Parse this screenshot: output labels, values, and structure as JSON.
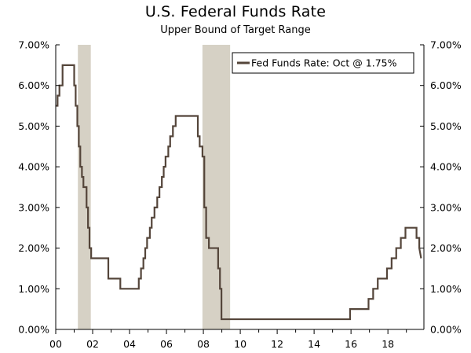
{
  "chart_data": {
    "type": "line",
    "title": "U.S. Federal Funds Rate",
    "subtitle": "Upper Bound of Target Range",
    "xlabel": "",
    "ylabel": "",
    "xlim": [
      2000.0,
      2019.95
    ],
    "ylim": [
      0,
      7
    ],
    "x_ticks": [
      {
        "value": 2000,
        "label": "00"
      },
      {
        "value": 2002,
        "label": "02"
      },
      {
        "value": 2004,
        "label": "04"
      },
      {
        "value": 2006,
        "label": "06"
      },
      {
        "value": 2008,
        "label": "08"
      },
      {
        "value": 2010,
        "label": "10"
      },
      {
        "value": 2012,
        "label": "12"
      },
      {
        "value": 2014,
        "label": "14"
      },
      {
        "value": 2016,
        "label": "16"
      },
      {
        "value": 2018,
        "label": "18"
      }
    ],
    "y_ticks": [
      {
        "value": 0,
        "label": "0.00%"
      },
      {
        "value": 1,
        "label": "1.00%"
      },
      {
        "value": 2,
        "label": "2.00%"
      },
      {
        "value": 3,
        "label": "3.00%"
      },
      {
        "value": 4,
        "label": "4.00%"
      },
      {
        "value": 5,
        "label": "5.00%"
      },
      {
        "value": 6,
        "label": "6.00%"
      },
      {
        "value": 7,
        "label": "7.00%"
      }
    ],
    "recessions": [
      {
        "start": 2001.2,
        "end": 2001.9
      },
      {
        "start": 2007.95,
        "end": 2009.45
      }
    ],
    "legend": {
      "position": "top-right",
      "label": "Fed Funds Rate: Oct @ 1.75%"
    },
    "colors": {
      "line": "#54453a",
      "recession": "#d6d1c5",
      "axis": "#000000"
    },
    "series": [
      {
        "name": "Fed Funds Rate",
        "x": [
          2000.0,
          2000.1,
          2000.1,
          2000.2,
          2000.2,
          2000.37,
          2000.37,
          2001.0,
          2001.0,
          2001.08,
          2001.08,
          2001.17,
          2001.17,
          2001.25,
          2001.25,
          2001.33,
          2001.33,
          2001.42,
          2001.42,
          2001.5,
          2001.5,
          2001.67,
          2001.67,
          2001.75,
          2001.75,
          2001.83,
          2001.83,
          2001.92,
          2001.92,
          2002.85,
          2002.85,
          2003.5,
          2003.5,
          2004.5,
          2004.5,
          2004.62,
          2004.62,
          2004.75,
          2004.75,
          2004.85,
          2004.85,
          2004.95,
          2004.95,
          2005.1,
          2005.1,
          2005.2,
          2005.2,
          2005.35,
          2005.35,
          2005.5,
          2005.5,
          2005.62,
          2005.62,
          2005.75,
          2005.75,
          2005.85,
          2005.85,
          2005.95,
          2005.95,
          2006.1,
          2006.1,
          2006.2,
          2006.2,
          2006.35,
          2006.35,
          2006.5,
          2006.5,
          2007.7,
          2007.7,
          2007.8,
          2007.8,
          2007.95,
          2007.95,
          2008.05,
          2008.05,
          2008.15,
          2008.15,
          2008.3,
          2008.3,
          2008.8,
          2008.8,
          2008.9,
          2008.9,
          2008.98,
          2008.98,
          2015.95,
          2015.95,
          2016.95,
          2016.95,
          2017.2,
          2017.2,
          2017.45,
          2017.45,
          2017.95,
          2017.95,
          2018.2,
          2018.2,
          2018.45,
          2018.45,
          2018.7,
          2018.7,
          2018.95,
          2018.95,
          2019.55,
          2019.55,
          2019.7,
          2019.7,
          2019.8
        ],
        "values": [
          5.5,
          5.5,
          5.75,
          5.75,
          6.0,
          6.0,
          6.5,
          6.5,
          6.0,
          6.0,
          5.5,
          5.5,
          5.0,
          5.0,
          4.5,
          4.5,
          4.0,
          4.0,
          3.75,
          3.75,
          3.5,
          3.5,
          3.0,
          3.0,
          2.5,
          2.5,
          2.0,
          2.0,
          1.75,
          1.75,
          1.25,
          1.25,
          1.0,
          1.0,
          1.25,
          1.25,
          1.5,
          1.5,
          1.75,
          1.75,
          2.0,
          2.0,
          2.25,
          2.25,
          2.5,
          2.5,
          2.75,
          2.75,
          3.0,
          3.0,
          3.25,
          3.25,
          3.5,
          3.5,
          3.75,
          3.75,
          4.0,
          4.0,
          4.25,
          4.25,
          4.5,
          4.5,
          4.75,
          4.75,
          5.0,
          5.0,
          5.25,
          5.25,
          4.75,
          4.75,
          4.5,
          4.5,
          4.25,
          4.25,
          3.0,
          3.0,
          2.25,
          2.25,
          2.0,
          2.0,
          1.5,
          1.5,
          1.0,
          1.0,
          0.25,
          0.25,
          0.5,
          0.5,
          0.75,
          0.75,
          1.0,
          1.0,
          1.25,
          1.25,
          1.5,
          1.5,
          1.75,
          1.75,
          2.0,
          2.0,
          2.25,
          2.25,
          2.5,
          2.5,
          2.25,
          2.25,
          2.0,
          1.75
        ]
      }
    ]
  }
}
